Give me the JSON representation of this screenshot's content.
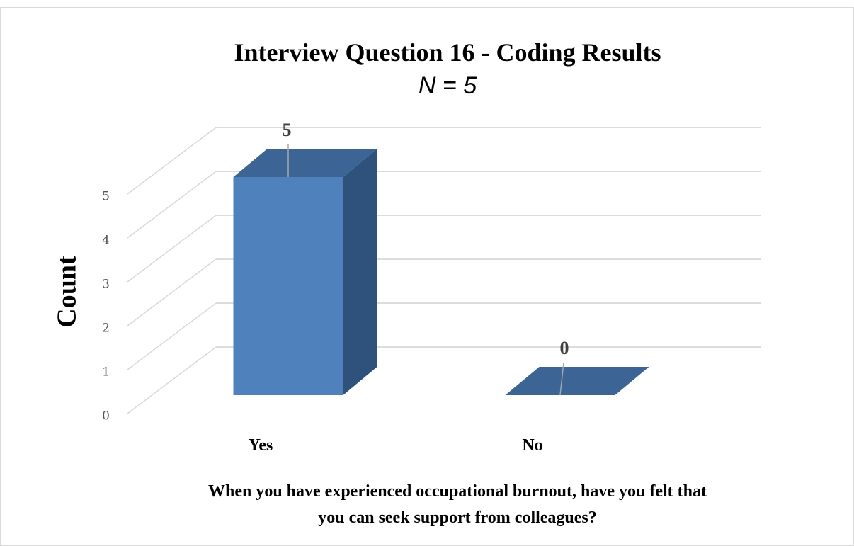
{
  "chart_data": {
    "type": "bar3d",
    "title": "Interview Question 16 - Coding Results",
    "subtitle": "N = 5",
    "ylabel": "Count",
    "xlabel": [
      "When you have experienced occupational burnout, have you felt that",
      "you can seek support from colleagues?"
    ],
    "categories": [
      "Yes",
      "No"
    ],
    "values": [
      5,
      0
    ],
    "color": "#4f81bd",
    "ylim": [
      0,
      5
    ],
    "yticks": [
      0,
      1,
      2,
      3,
      4,
      5
    ],
    "grid": true
  }
}
